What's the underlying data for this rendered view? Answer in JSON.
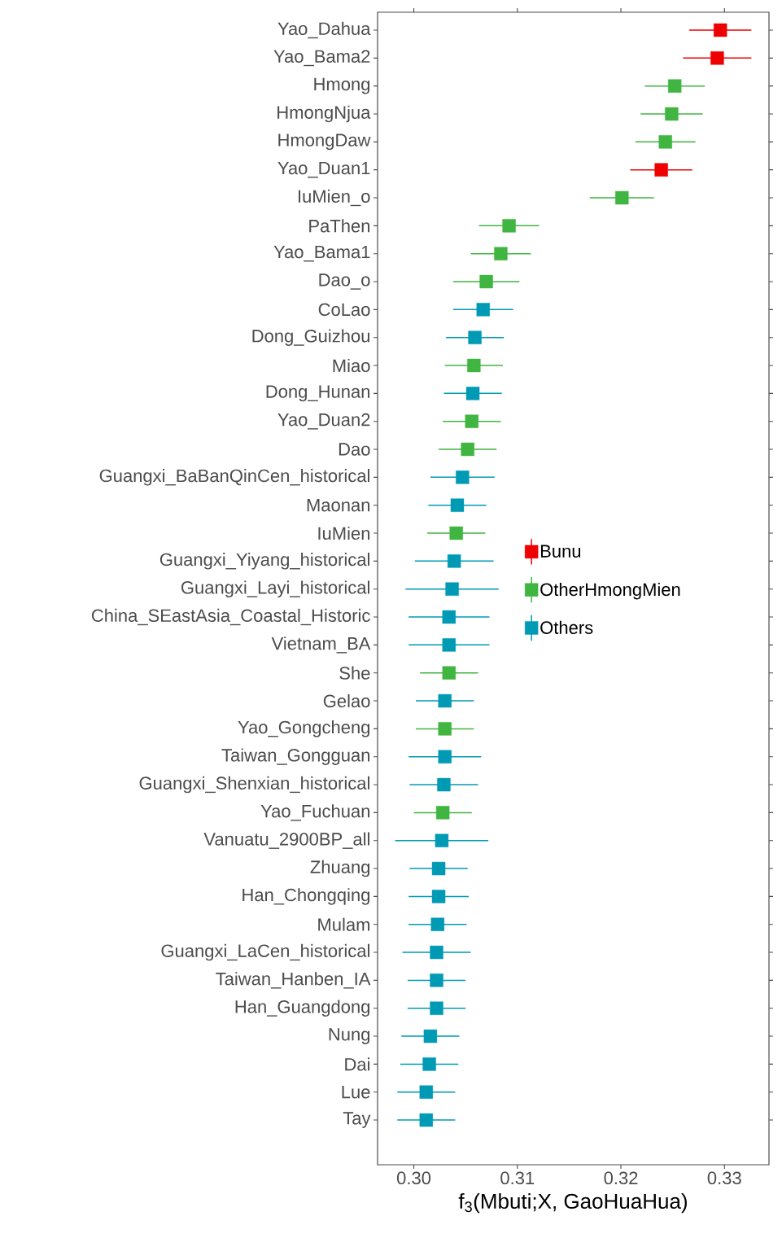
{
  "chart_data": {
    "type": "scatter",
    "orientation": "horizontal",
    "xlabel": "f$_{3}$(Mbuti;X, GaoHuaHua)",
    "categories": [
      "Yao_Dahua",
      "Yao_Bama2",
      "Hmong",
      "HmongNjua",
      "HmongDaw",
      "Yao_Duan1",
      "IuMien_o",
      "PaThen",
      "Yao_Bama1",
      "Dao_o",
      "CoLao",
      "Dong_Guizhou",
      "Miao",
      "Dong_Hunan",
      "Yao_Duan2",
      "Dao",
      "Guangxi_BaBanQinCen_historical",
      "Maonan",
      "IuMien",
      "Guangxi_Yiyang_historical",
      "Guangxi_Layi_historical",
      "China_SEastAsia_Coastal_Historic",
      "Vietnam_BA",
      "She",
      "Gelao",
      "Yao_Gongcheng",
      "Taiwan_Gongguan",
      "Guangxi_Shenxian_historical",
      "Yao_Fuchuan",
      "Vanuatu_2900BP_all",
      "Zhuang",
      "Han_Chongqing",
      "Mulam",
      "Guangxi_LaCen_historical",
      "Taiwan_Hanben_IA",
      "Han_Guangdong",
      "Nung",
      "Dai",
      "Lue",
      "Tay"
    ],
    "series": [
      {
        "name": "Bunu",
        "color": "#ee0000",
        "values": [
          0.3296,
          0.3293,
          null,
          null,
          null,
          0.3239,
          null,
          null,
          null,
          null,
          null,
          null,
          null,
          null,
          null,
          null,
          null,
          null,
          null,
          null,
          null,
          null,
          null,
          null,
          null,
          null,
          null,
          null,
          null,
          null,
          null,
          null,
          null,
          null,
          null,
          null,
          null,
          null,
          null,
          null
        ],
        "errors": [
          0.003,
          0.0033,
          null,
          null,
          null,
          0.003,
          null,
          null,
          null,
          null,
          null,
          null,
          null,
          null,
          null,
          null,
          null,
          null,
          null,
          null,
          null,
          null,
          null,
          null,
          null,
          null,
          null,
          null,
          null,
          null,
          null,
          null,
          null,
          null,
          null,
          null,
          null,
          null,
          null,
          null
        ]
      },
      {
        "name": "OtherHmongMien",
        "color": "#41b541",
        "values": [
          null,
          null,
          0.3252,
          0.3249,
          0.3243,
          null,
          0.3201,
          0.3092,
          0.3084,
          0.307,
          null,
          null,
          0.3058,
          null,
          0.3056,
          0.3052,
          null,
          null,
          0.3041,
          null,
          null,
          null,
          null,
          0.3034,
          null,
          0.303,
          null,
          null,
          0.3028,
          null,
          null,
          null,
          null,
          null,
          null,
          null,
          null,
          null,
          null,
          null
        ],
        "errors": [
          null,
          null,
          0.0029,
          0.003,
          0.0029,
          null,
          0.0031,
          0.0029,
          0.0029,
          0.0032,
          null,
          null,
          0.0028,
          null,
          0.0028,
          0.0028,
          null,
          null,
          0.0028,
          null,
          null,
          null,
          null,
          0.0028,
          null,
          0.0028,
          null,
          null,
          0.0028,
          null,
          null,
          null,
          null,
          null,
          null,
          null,
          null,
          null,
          null,
          null
        ]
      },
      {
        "name": "Others",
        "color": "#009ab5",
        "values": [
          null,
          null,
          null,
          null,
          null,
          null,
          null,
          null,
          null,
          null,
          0.3067,
          0.3059,
          null,
          0.3057,
          null,
          null,
          0.3047,
          0.3042,
          null,
          0.3039,
          0.3037,
          0.3034,
          0.3034,
          null,
          0.303,
          null,
          0.303,
          0.3029,
          null,
          0.3027,
          0.3024,
          0.3024,
          0.3023,
          0.3022,
          0.3022,
          0.3022,
          0.3016,
          0.3015,
          0.3012,
          0.3012
        ],
        "errors": [
          null,
          null,
          null,
          null,
          null,
          null,
          null,
          null,
          null,
          null,
          0.0029,
          0.0028,
          null,
          0.0028,
          null,
          null,
          0.0031,
          0.0028,
          null,
          0.0038,
          0.0045,
          0.0039,
          0.0039,
          null,
          0.0028,
          null,
          0.0035,
          0.0033,
          null,
          0.0045,
          0.0028,
          0.0029,
          0.0028,
          0.0033,
          0.0028,
          0.0028,
          0.0028,
          0.0028,
          0.0028,
          0.0028
        ]
      }
    ],
    "xlim": [
      0.2965,
      0.3343
    ],
    "xticks": [
      {
        "value": 0.3,
        "label": "0.30"
      },
      0.31,
      0.32,
      0.33
    ],
    "marker": "square",
    "legend": "right",
    "grid": false
  }
}
